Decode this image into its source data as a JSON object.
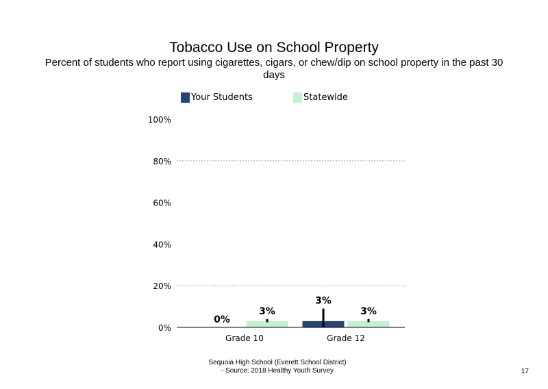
{
  "title": "Tobacco Use on School Property",
  "subtitle": "Percent of students who report using cigarettes, cigars, or chew/dip on school property in the past 30 days",
  "footer": {
    "line1": "Sequoia High School (Everett School District)",
    "line2": "- Source: 2018 Healthy Youth Survey"
  },
  "page_number": "17",
  "colors": {
    "your_students": "#264478",
    "statewide": "#c6efce"
  },
  "chart_data": {
    "type": "bar",
    "title": "Tobacco Use on School Property",
    "categories": [
      "Grade 10",
      "Grade 12"
    ],
    "series": [
      {
        "name": "Your Students",
        "values": [
          0,
          3
        ],
        "labels": [
          "0%",
          "3%"
        ],
        "error_bar": [
          null,
          9
        ],
        "color": "#264478"
      },
      {
        "name": "Statewide",
        "values": [
          3,
          3
        ],
        "labels": [
          "3%",
          "3%"
        ],
        "error_bar": [
          1.5,
          1.5
        ],
        "color": "#c6efce"
      }
    ],
    "ylim": [
      0,
      100
    ],
    "yticks": [
      0,
      20,
      40,
      60,
      80,
      100
    ],
    "ytick_labels": [
      "0%",
      "20%",
      "40%",
      "60%",
      "80%",
      "100%"
    ],
    "grid": "dotted horizontal at 20% and 80%",
    "legend": "top"
  }
}
